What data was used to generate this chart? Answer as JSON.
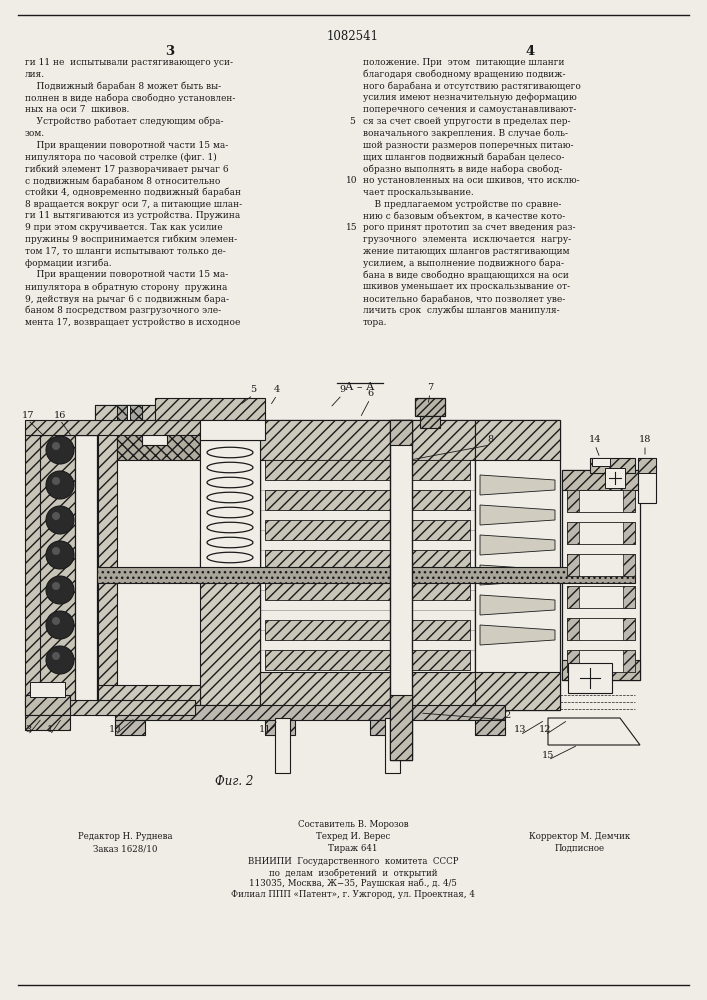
{
  "patent_number": "1082541",
  "page_col_left": "3",
  "page_col_right": "4",
  "bg_color": "#f0ede6",
  "text_color": "#1a1a1a",
  "left_text_lines": [
    "ги 11 не  испытывали растягивающего уси-",
    "лия.",
    "    Подвижный барабан 8 может быть вы-",
    "полнен в виде набора свободно установлен-",
    "ных на оси 7  шкивов.",
    "    Устройство работает следующим обра-",
    "зом.",
    "    При вращении поворотной части 15 ма-",
    "нипулятора по часовой стрелке (фиг. 1)",
    "гибкий элемент 17 разворачивает рычаг 6",
    "с подвижным барабаном 8 относительно",
    "стойки 4, одновременно подвижный барабан",
    "8 вращается вокруг оси 7, а питающие шлан-",
    "ги 11 вытягиваются из устройства. Пружина",
    "9 при этом скручивается. Так как усилие",
    "пружины 9 воспринимается гибким элемен-",
    "том 17, то шланги испытывают только де-",
    "формации изгиба.",
    "    При вращении поворотной части 15 ма-",
    "нипулятора в обратную сторону  пружина",
    "9, действуя на рычаг 6 с подвижным бара-",
    "баном 8 посредством разгрузочного эле-",
    "мента 17, возвращает устройство в исходное"
  ],
  "left_line_numbers": {
    "5": 5,
    "10": 10,
    "15": 14
  },
  "right_text_lines": [
    "положение. При  этом  питающие шланги",
    "благодаря свободному вращению подвиж-",
    "ного барабана и отсутствию растягивающего",
    "усилия имеют незначительную деформацию",
    "поперечного сечения и самоустанавливают-",
    "ся за счет своей упругости в пределах пер-",
    "воначального закрепления. В случае боль-",
    "шой разности размеров поперечных питаю-",
    "щих шлангов подвижный барабан целесо-",
    "образно выполнять в виде набора свобод-",
    "но установленных на оси шкивов, что исклю-",
    "чает проскальзывание.",
    "    В предлагаемом устройстве по сравне-",
    "нию с базовым объектом, в качестве кото-",
    "рого принят прототип за счет введения раз-",
    "грузочного  элемента  исключается  нагру-",
    "жение питающих шлангов растягивающим",
    "усилием, а выполнение подвижного бара-",
    "бана в виде свободно вращающихся на оси",
    "шкивов уменьшает их проскальзывание от-",
    "носительно барабанов, что позволяет уве-",
    "личить срок  службы шлангов манипуля-",
    "тора."
  ],
  "fig_caption": "Фиг. 2",
  "footer_col1_line1": "Редактор Н. Руднева",
  "footer_col2_line0": "Составитель В. Морозов",
  "footer_col2_line1": "Техред И. Верес",
  "footer_col2_line2": "Тираж 641",
  "footer_col3_line1": "Корректор М. Демчик",
  "footer_col3_line2": "Подписное",
  "footer_col1_line2": "Заказ 1628/10",
  "footer_center_lines": [
    "ВНИИПИ  Государственного  комитета  СССР",
    "по  делам  изобретений  и  открытий",
    "113035, Москва, Ж−35, Раушская наб., д. 4/5",
    "Филиал ППП «Патент», г. Ужгород, ул. Проектная, 4"
  ]
}
